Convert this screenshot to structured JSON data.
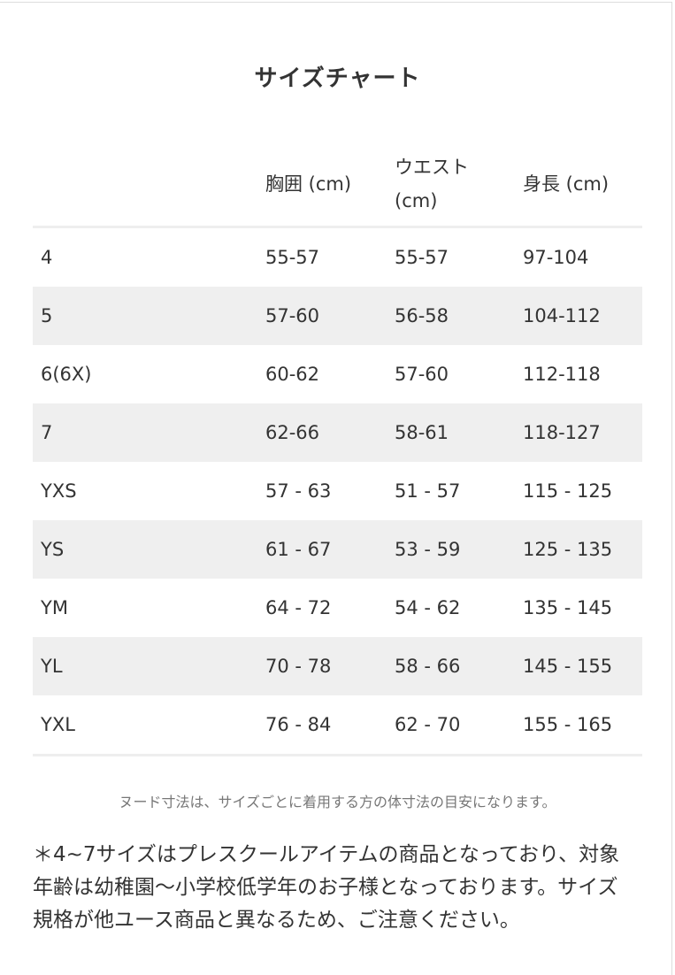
{
  "title": "サイズチャート",
  "table": {
    "headers": [
      "",
      "胸囲 (cm)",
      "ウエスト (cm)",
      "身長 (cm)"
    ],
    "rows": [
      [
        "4",
        "55-57",
        "55-57",
        "97-104"
      ],
      [
        "5",
        "57-60",
        "56-58",
        "104-112"
      ],
      [
        "6(6X)",
        "60-62",
        "57-60",
        "112-118"
      ],
      [
        "7",
        "62-66",
        "58-61",
        "118-127"
      ],
      [
        "YXS",
        "57 - 63",
        "51 - 57",
        "115 - 125"
      ],
      [
        "YS",
        "61 - 67",
        "53 - 59",
        "125 - 135"
      ],
      [
        "YM",
        "64 - 72",
        "54 - 62",
        "135 - 145"
      ],
      [
        "YL",
        "70 - 78",
        "58 - 66",
        "145 - 155"
      ],
      [
        "YXL",
        "76 - 84",
        "62 - 70",
        "155 - 165"
      ]
    ]
  },
  "note": "ヌード寸法は、サイズごとに着用する方の体寸法の目安になります。",
  "disclaimer": "＊4~7サイズはプレスクールアイテムの商品となっており、対象年齢は幼稚園〜小学校低学年のお子様となっております。サイズ規格が他ユース商品と異なるため、ご注意ください。"
}
